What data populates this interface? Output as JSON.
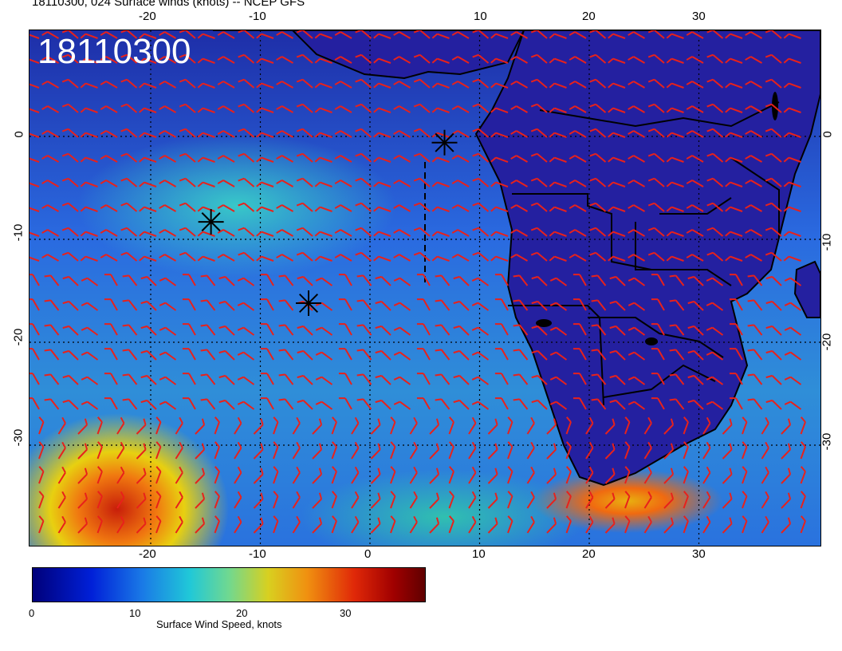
{
  "title": "18110300, 024 Surface winds (knots) -- NCEP GFS",
  "date_stamp": "18110300",
  "map": {
    "lon_ticks": [
      "-20",
      "-10",
      "0",
      "10",
      "20",
      "30"
    ],
    "lat_ticks": [
      "0",
      "-10",
      "-20",
      "-30"
    ],
    "markers": [
      {
        "name": "asterisk",
        "lon": -14.5,
        "lat": -8.3
      },
      {
        "name": "asterisk",
        "lon": -5.6,
        "lat": -16.2
      },
      {
        "name": "asterisk",
        "lon": 6.8,
        "lat": -0.6
      }
    ],
    "barb_color": "#e8211b",
    "grid": "dotted",
    "wind_barbs_present": true
  },
  "colorbar": {
    "label": "Surface Wind Speed, knots",
    "ticks": [
      "0",
      "10",
      "20",
      "30"
    ],
    "colors": [
      "#00007a",
      "#0020d8",
      "#1a7ae6",
      "#20c8d8",
      "#70d890",
      "#d8d020",
      "#f09010",
      "#e02808",
      "#a00000"
    ]
  }
}
